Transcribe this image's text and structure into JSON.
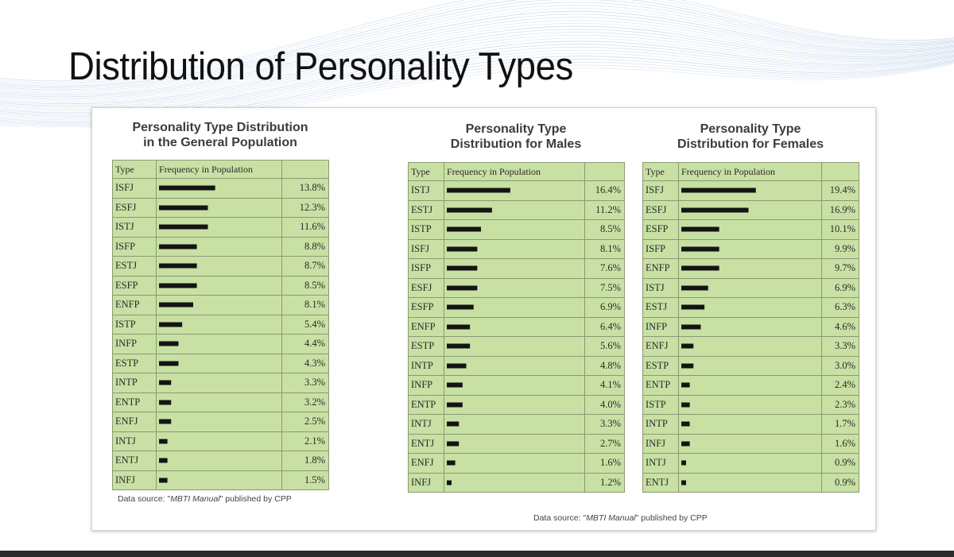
{
  "slide": {
    "title": "Distribution of Personality Types"
  },
  "tables": [
    {
      "heading_line1": "Personality Type Distribution",
      "heading_line2": "in the General Population",
      "col_type": "Type",
      "col_freq": "Frequency in Population",
      "rows": [
        {
          "type": "ISFJ",
          "bar": 15,
          "pct": "13.8%"
        },
        {
          "type": "ESFJ",
          "bar": 13,
          "pct": "12.3%"
        },
        {
          "type": "ISTJ",
          "bar": 13,
          "pct": "11.6%"
        },
        {
          "type": "ISFP",
          "bar": 10,
          "pct": "8.8%"
        },
        {
          "type": "ESTJ",
          "bar": 10,
          "pct": "8.7%"
        },
        {
          "type": "ESFP",
          "bar": 10,
          "pct": "8.5%"
        },
        {
          "type": "ENFP",
          "bar": 9,
          "pct": "8.1%"
        },
        {
          "type": "ISTP",
          "bar": 6,
          "pct": "5.4%"
        },
        {
          "type": "INFP",
          "bar": 5,
          "pct": "4.4%"
        },
        {
          "type": "ESTP",
          "bar": 5,
          "pct": "4.3%"
        },
        {
          "type": "INTP",
          "bar": 3,
          "pct": "3.3%"
        },
        {
          "type": "ENTP",
          "bar": 3,
          "pct": "3.2%"
        },
        {
          "type": "ENFJ",
          "bar": 3,
          "pct": "2.5%"
        },
        {
          "type": "INTJ",
          "bar": 2,
          "pct": "2.1%"
        },
        {
          "type": "ENTJ",
          "bar": 2,
          "pct": "1.8%"
        },
        {
          "type": "INFJ",
          "bar": 2,
          "pct": "1.5%"
        }
      ]
    },
    {
      "heading_line1": "Personality Type",
      "heading_line2": "Distribution for Males",
      "col_type": "Type",
      "col_freq": "Frequency in Population",
      "rows": [
        {
          "type": "ISTJ",
          "bar": 17,
          "pct": "16.4%"
        },
        {
          "type": "ESTJ",
          "bar": 12,
          "pct": "11.2%"
        },
        {
          "type": "ISTP",
          "bar": 9,
          "pct": "8.5%"
        },
        {
          "type": "ISFJ",
          "bar": 8,
          "pct": "8.1%"
        },
        {
          "type": "ISFP",
          "bar": 8,
          "pct": "7.6%"
        },
        {
          "type": "ESFJ",
          "bar": 8,
          "pct": "7.5%"
        },
        {
          "type": "ESFP",
          "bar": 7,
          "pct": "6.9%"
        },
        {
          "type": "ENFP",
          "bar": 6,
          "pct": "6.4%"
        },
        {
          "type": "ESTP",
          "bar": 6,
          "pct": "5.6%"
        },
        {
          "type": "INTP",
          "bar": 5,
          "pct": "4.8%"
        },
        {
          "type": "INFP",
          "bar": 4,
          "pct": "4.1%"
        },
        {
          "type": "ENTP",
          "bar": 4,
          "pct": "4.0%"
        },
        {
          "type": "INTJ",
          "bar": 3,
          "pct": "3.3%"
        },
        {
          "type": "ENTJ",
          "bar": 3,
          "pct": "2.7%"
        },
        {
          "type": "ENFJ",
          "bar": 2,
          "pct": "1.6%"
        },
        {
          "type": "INFJ",
          "bar": 1,
          "pct": "1.2%"
        }
      ]
    },
    {
      "heading_line1": "Personality Type",
      "heading_line2": "Distribution for Females",
      "col_type": "Type",
      "col_freq": "Frequency in Population",
      "rows": [
        {
          "type": "ISFJ",
          "bar": 20,
          "pct": "19.4%"
        },
        {
          "type": "ESFJ",
          "bar": 18,
          "pct": "16.9%"
        },
        {
          "type": "ESFP",
          "bar": 10,
          "pct": "10.1%"
        },
        {
          "type": "ISFP",
          "bar": 10,
          "pct": "9.9%"
        },
        {
          "type": "ENFP",
          "bar": 10,
          "pct": "9.7%"
        },
        {
          "type": "ISTJ",
          "bar": 7,
          "pct": "6.9%"
        },
        {
          "type": "ESTJ",
          "bar": 6,
          "pct": "6.3%"
        },
        {
          "type": "INFP",
          "bar": 5,
          "pct": "4.6%"
        },
        {
          "type": "ENFJ",
          "bar": 3,
          "pct": "3.3%"
        },
        {
          "type": "ESTP",
          "bar": 3,
          "pct": "3.0%"
        },
        {
          "type": "ENTP",
          "bar": 2,
          "pct": "2.4%"
        },
        {
          "type": "ISTP",
          "bar": 2,
          "pct": "2.3%"
        },
        {
          "type": "INTP",
          "bar": 2,
          "pct": "1.7%"
        },
        {
          "type": "INFJ",
          "bar": 2,
          "pct": "1.6%"
        },
        {
          "type": "INTJ",
          "bar": 1,
          "pct": "0.9%"
        },
        {
          "type": "ENTJ",
          "bar": 1,
          "pct": "0.9%"
        }
      ]
    }
  ],
  "sources": [
    {
      "prefix": "Data source: \"",
      "title": "MBTI Manual",
      "suffix": "\" published by CPP"
    },
    {
      "prefix": "Data source: \"",
      "title": "MBTI Manual",
      "suffix": "\" published by CPP"
    }
  ],
  "colors": {
    "table_fill": "#c8e0a4",
    "table_border": "#8a9a72",
    "wave_line": "#a9c3e0",
    "bottom_bar": "#2b2b2b"
  },
  "icons": {
    "bar_unit": "black-square-block"
  }
}
